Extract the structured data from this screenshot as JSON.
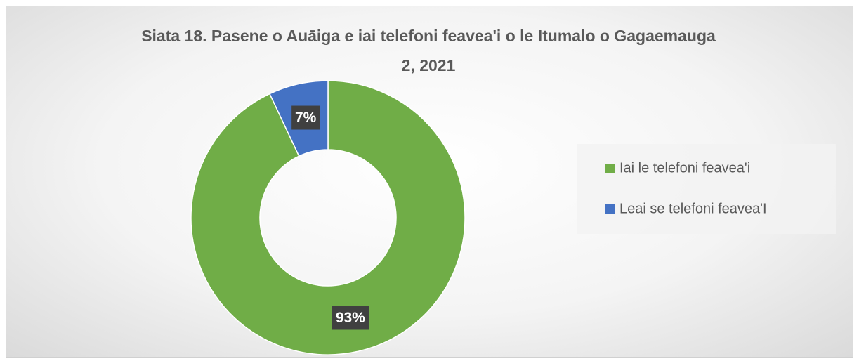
{
  "chart_data": {
    "type": "donut",
    "title": "Siata 18. Pasene o Auāiga e iai telefoni feavea'i o le Itumalo o Gagaemauga 2, 2021",
    "categories": [
      "Iai le telefoni feavea'i",
      "Leai se telefoni feavea'I"
    ],
    "values": [
      93,
      7
    ],
    "value_labels": [
      "93%",
      "7%"
    ],
    "colors": [
      "#70ad47",
      "#4472c4"
    ],
    "legend": "right"
  }
}
